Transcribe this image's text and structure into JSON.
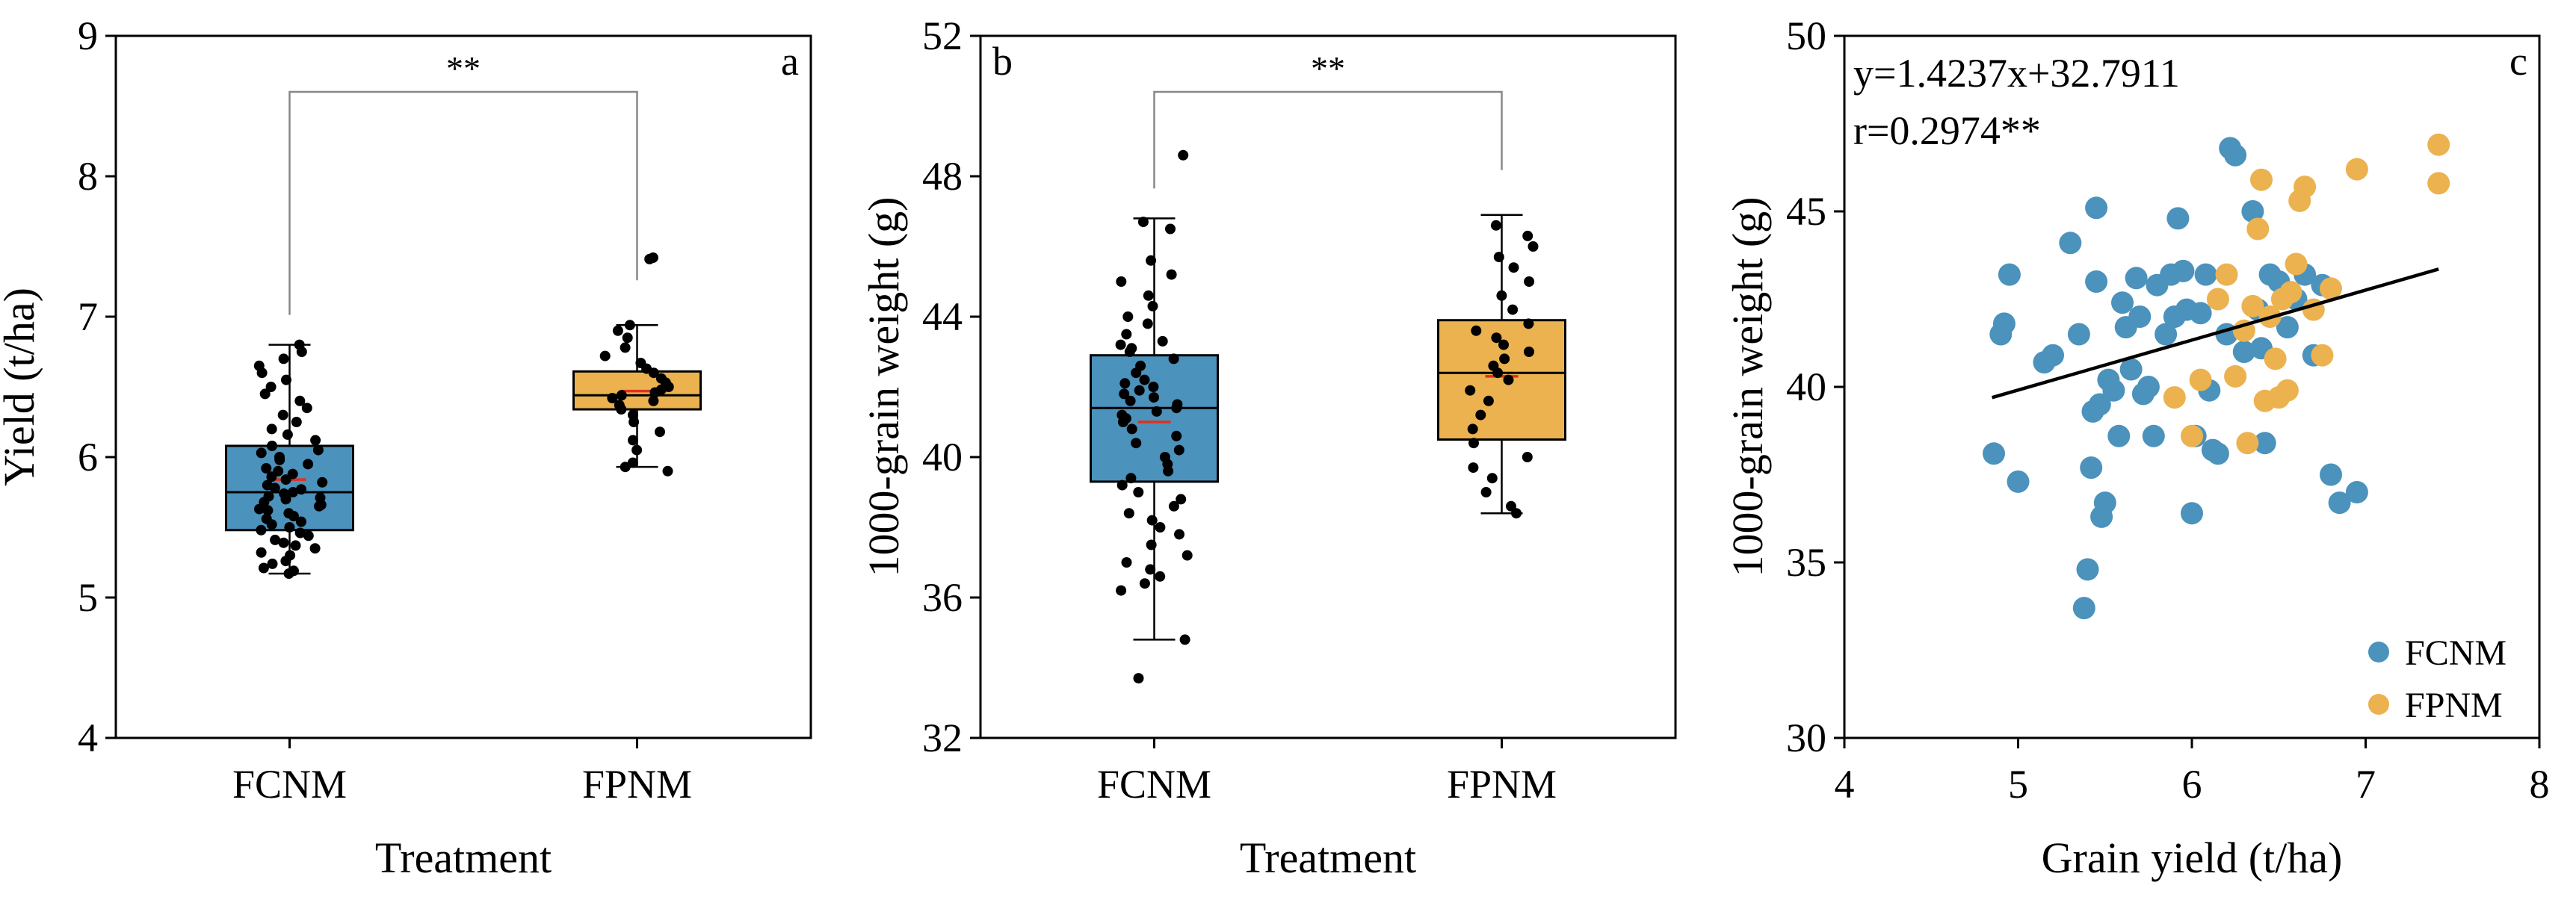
{
  "chart_data": [
    {
      "id": "a",
      "type": "box",
      "panel_letter": "a",
      "title": "",
      "xlabel": "Treatment",
      "ylabel": "Yield (t/ha)",
      "ylim": [
        4,
        9
      ],
      "yticks": [
        "4",
        "5",
        "6",
        "7",
        "8",
        "9"
      ],
      "significance": "**",
      "groups": [
        {
          "name": "FCNM",
          "color": "#4b92bc",
          "q1": 5.48,
          "median": 5.75,
          "q3": 6.08,
          "whisker_low": 5.17,
          "whisker_high": 6.8,
          "mean": 5.84,
          "points": [
            5.17,
            5.19,
            5.21,
            5.24,
            5.26,
            5.3,
            5.32,
            5.35,
            5.37,
            5.39,
            5.41,
            5.44,
            5.46,
            5.48,
            5.5,
            5.52,
            5.54,
            5.56,
            5.58,
            5.6,
            5.62,
            5.63,
            5.65,
            5.66,
            5.68,
            5.7,
            5.71,
            5.72,
            5.74,
            5.75,
            5.77,
            5.78,
            5.8,
            5.82,
            5.84,
            5.86,
            5.88,
            5.9,
            5.92,
            5.95,
            5.98,
            6.0,
            6.03,
            6.05,
            6.08,
            6.12,
            6.16,
            6.2,
            6.25,
            6.3,
            6.35,
            6.4,
            6.45,
            6.5,
            6.55,
            6.6,
            6.65,
            6.7,
            6.75,
            6.8
          ]
        },
        {
          "name": "FPNM",
          "color": "#ebb24f",
          "q1": 6.34,
          "median": 6.44,
          "q3": 6.61,
          "whisker_low": 5.93,
          "whisker_high": 6.94,
          "mean": 6.47,
          "points": [
            5.9,
            5.93,
            5.96,
            6.05,
            6.12,
            6.18,
            6.25,
            6.3,
            6.34,
            6.37,
            6.4,
            6.42,
            6.44,
            6.46,
            6.48,
            6.5,
            6.53,
            6.56,
            6.6,
            6.63,
            6.67,
            6.72,
            6.78,
            6.85,
            6.9,
            6.94,
            7.41,
            7.42
          ]
        }
      ]
    },
    {
      "id": "b",
      "type": "box",
      "panel_letter": "b",
      "title": "",
      "xlabel": "Treatment",
      "ylabel": "1000-grain weight (g)",
      "ylim": [
        32,
        52
      ],
      "yticks": [
        "32",
        "36",
        "40",
        "44",
        "48",
        "52"
      ],
      "significance": "**",
      "groups": [
        {
          "name": "FCNM",
          "color": "#4b92bc",
          "q1": 39.3,
          "median": 41.4,
          "q3": 42.9,
          "whisker_low": 34.8,
          "whisker_high": 46.8,
          "mean": 41.0,
          "points": [
            33.7,
            34.8,
            36.2,
            36.4,
            36.6,
            36.8,
            37.0,
            37.2,
            37.5,
            37.8,
            38.0,
            38.2,
            38.4,
            38.6,
            38.8,
            39.0,
            39.2,
            39.4,
            39.6,
            39.8,
            40.0,
            40.2,
            40.4,
            40.6,
            40.8,
            41.0,
            41.1,
            41.2,
            41.3,
            41.4,
            41.5,
            41.6,
            41.7,
            41.8,
            41.9,
            42.0,
            42.1,
            42.2,
            42.4,
            42.6,
            42.8,
            43.0,
            43.1,
            43.2,
            43.3,
            43.5,
            43.8,
            44.0,
            44.3,
            44.6,
            45.0,
            45.2,
            45.6,
            46.5,
            46.7,
            48.6
          ]
        },
        {
          "name": "FPNM",
          "color": "#ebb24f",
          "q1": 40.5,
          "median": 42.4,
          "q3": 43.9,
          "whisker_low": 38.4,
          "whisker_high": 46.9,
          "mean": 42.3,
          "points": [
            38.4,
            38.6,
            39.0,
            39.4,
            39.7,
            40.0,
            40.4,
            40.8,
            41.2,
            41.6,
            41.9,
            42.2,
            42.4,
            42.6,
            42.8,
            43.0,
            43.2,
            43.4,
            43.6,
            43.8,
            44.2,
            44.6,
            45.0,
            45.4,
            45.7,
            46.0,
            46.3,
            46.6
          ]
        }
      ]
    },
    {
      "id": "c",
      "type": "scatter",
      "panel_letter": "c",
      "title": "",
      "xlabel": "Grain yield (t/ha)",
      "ylabel": "1000-grain weight (g)",
      "xlim": [
        4,
        8
      ],
      "ylim": [
        30,
        50
      ],
      "xticks": [
        "4",
        "5",
        "6",
        "7",
        "8"
      ],
      "yticks": [
        "30",
        "35",
        "40",
        "45",
        "50"
      ],
      "equation": "y=1.4237x+32.7911",
      "r_text": "r=0.2974**",
      "fit": {
        "slope": 1.4237,
        "intercept": 32.7911,
        "x_range": [
          4.85,
          7.42
        ]
      },
      "legend_position": "bottom-right",
      "series": [
        {
          "name": "FCNM",
          "color": "#4b92bc",
          "points": [
            [
              4.86,
              38.1
            ],
            [
              4.9,
              41.5
            ],
            [
              4.92,
              41.8
            ],
            [
              4.95,
              43.2
            ],
            [
              5.0,
              37.3
            ],
            [
              5.15,
              40.7
            ],
            [
              5.2,
              40.9
            ],
            [
              5.3,
              44.1
            ],
            [
              5.35,
              41.5
            ],
            [
              5.38,
              33.7
            ],
            [
              5.4,
              34.8
            ],
            [
              5.42,
              37.7
            ],
            [
              5.43,
              39.3
            ],
            [
              5.45,
              45.1
            ],
            [
              5.45,
              43.0
            ],
            [
              5.47,
              39.5
            ],
            [
              5.48,
              36.3
            ],
            [
              5.5,
              36.7
            ],
            [
              5.52,
              40.2
            ],
            [
              5.55,
              39.9
            ],
            [
              5.58,
              38.6
            ],
            [
              5.6,
              42.4
            ],
            [
              5.62,
              41.7
            ],
            [
              5.65,
              40.5
            ],
            [
              5.68,
              43.1
            ],
            [
              5.7,
              42.0
            ],
            [
              5.72,
              39.8
            ],
            [
              5.75,
              40.0
            ],
            [
              5.78,
              38.6
            ],
            [
              5.8,
              42.9
            ],
            [
              5.85,
              41.5
            ],
            [
              5.88,
              43.2
            ],
            [
              5.9,
              42.0
            ],
            [
              5.92,
              44.8
            ],
            [
              5.95,
              43.3
            ],
            [
              5.97,
              42.2
            ],
            [
              6.0,
              36.4
            ],
            [
              6.02,
              38.6
            ],
            [
              6.05,
              42.1
            ],
            [
              6.08,
              43.2
            ],
            [
              6.1,
              39.9
            ],
            [
              6.12,
              38.2
            ],
            [
              6.15,
              38.1
            ],
            [
              6.2,
              41.5
            ],
            [
              6.22,
              46.8
            ],
            [
              6.25,
              46.6
            ],
            [
              6.3,
              41.0
            ],
            [
              6.35,
              45.0
            ],
            [
              6.38,
              42.2
            ],
            [
              6.4,
              41.1
            ],
            [
              6.42,
              38.4
            ],
            [
              6.45,
              43.2
            ],
            [
              6.5,
              43.0
            ],
            [
              6.55,
              41.7
            ],
            [
              6.6,
              42.5
            ],
            [
              6.65,
              43.2
            ],
            [
              6.7,
              40.9
            ],
            [
              6.75,
              42.9
            ],
            [
              6.8,
              37.5
            ],
            [
              6.85,
              36.7
            ],
            [
              6.95,
              37.0
            ]
          ]
        },
        {
          "name": "FPNM",
          "color": "#ebb24f",
          "points": [
            [
              5.9,
              39.7
            ],
            [
              6.0,
              38.6
            ],
            [
              6.05,
              40.2
            ],
            [
              6.15,
              42.5
            ],
            [
              6.2,
              43.2
            ],
            [
              6.25,
              40.3
            ],
            [
              6.3,
              41.6
            ],
            [
              6.32,
              38.4
            ],
            [
              6.35,
              42.3
            ],
            [
              6.38,
              44.5
            ],
            [
              6.4,
              45.9
            ],
            [
              6.42,
              39.6
            ],
            [
              6.45,
              42.0
            ],
            [
              6.48,
              40.8
            ],
            [
              6.5,
              39.7
            ],
            [
              6.52,
              42.5
            ],
            [
              6.55,
              39.9
            ],
            [
              6.57,
              42.7
            ],
            [
              6.6,
              43.5
            ],
            [
              6.62,
              45.3
            ],
            [
              6.65,
              45.7
            ],
            [
              6.7,
              42.2
            ],
            [
              6.75,
              40.9
            ],
            [
              6.8,
              42.8
            ],
            [
              6.95,
              46.2
            ],
            [
              7.42,
              46.9
            ],
            [
              7.42,
              45.8
            ]
          ]
        }
      ]
    }
  ]
}
